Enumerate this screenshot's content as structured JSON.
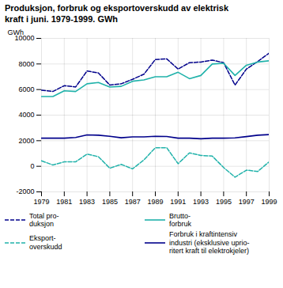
{
  "chart_data": {
    "type": "line",
    "title": "Produksjon, forbruk og eksportoverskudd av elektrisk\nkraft i juni. 1979-1999. GWh",
    "ylabel": "GWh",
    "x": [
      1979,
      1980,
      1981,
      1982,
      1983,
      1984,
      1985,
      1986,
      1987,
      1988,
      1989,
      1990,
      1991,
      1992,
      1993,
      1994,
      1995,
      1996,
      1997,
      1998,
      1999
    ],
    "series": [
      {
        "name": "Total pro-\nduksjon",
        "color": "#00008b",
        "line_style": "dashed",
        "values": [
          5950,
          5850,
          6300,
          6200,
          7450,
          7300,
          6350,
          6450,
          6800,
          7200,
          8350,
          8400,
          7600,
          8100,
          8150,
          8300,
          8100,
          6350,
          7600,
          8200,
          8850
        ]
      },
      {
        "name": "Brutto-\nforbruk",
        "color": "#20b2aa",
        "line_style": "solid",
        "values": [
          5450,
          5450,
          5900,
          5850,
          6450,
          6550,
          6200,
          6250,
          6650,
          6750,
          7000,
          7000,
          7350,
          6850,
          7100,
          8000,
          8050,
          7100,
          7900,
          8150,
          8250
        ]
      },
      {
        "name": "Eksport-\noverskudd",
        "color": "#20b2aa",
        "line_style": "dashed",
        "values": [
          430,
          100,
          350,
          350,
          950,
          750,
          -150,
          150,
          -200,
          500,
          1450,
          1450,
          200,
          1050,
          850,
          800,
          -100,
          -850,
          -300,
          -400,
          350
        ]
      },
      {
        "name": "Forbruk i kraftintensiv\nindustri (eksklusive uprio-\nritert kraft til elektrokjeler)",
        "color": "#00008b",
        "line_style": "solid",
        "values": [
          2200,
          2200,
          2200,
          2250,
          2450,
          2430,
          2350,
          2230,
          2300,
          2300,
          2350,
          2330,
          2200,
          2200,
          2150,
          2200,
          2200,
          2220,
          2320,
          2430,
          2480
        ]
      }
    ],
    "xlim": [
      1979,
      1999
    ],
    "xticks": [
      1979,
      1981,
      1983,
      1985,
      1987,
      1989,
      1991,
      1993,
      1995,
      1997,
      1999
    ],
    "ylim": [
      -2000,
      10000
    ],
    "yticks": [
      -2000,
      0,
      2000,
      4000,
      6000,
      8000,
      10000
    ],
    "grid": true,
    "legend": "bottom"
  }
}
